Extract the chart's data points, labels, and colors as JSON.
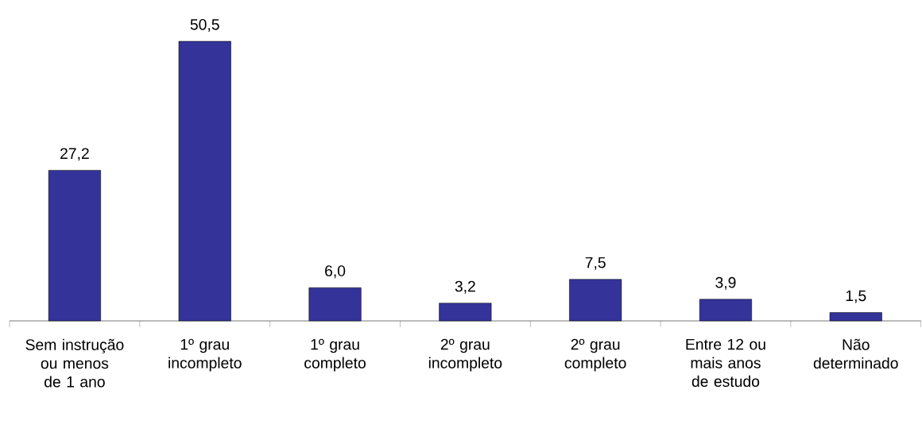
{
  "chart_data": {
    "type": "bar",
    "categories": [
      "Sem instrução ou menos de 1 ano",
      "1º grau incompleto",
      "1º grau completo",
      "2º grau incompleto",
      "2º grau completo",
      "Entre 12 ou mais anos de estudo",
      "Não determinado"
    ],
    "values": [
      27.2,
      50.5,
      6.0,
      3.2,
      7.5,
      3.9,
      1.5
    ],
    "value_labels": [
      "27,2",
      "50,5",
      "6,0",
      "3,2",
      "7,5",
      "3,9",
      "1,5"
    ],
    "color": "#333399"
  }
}
